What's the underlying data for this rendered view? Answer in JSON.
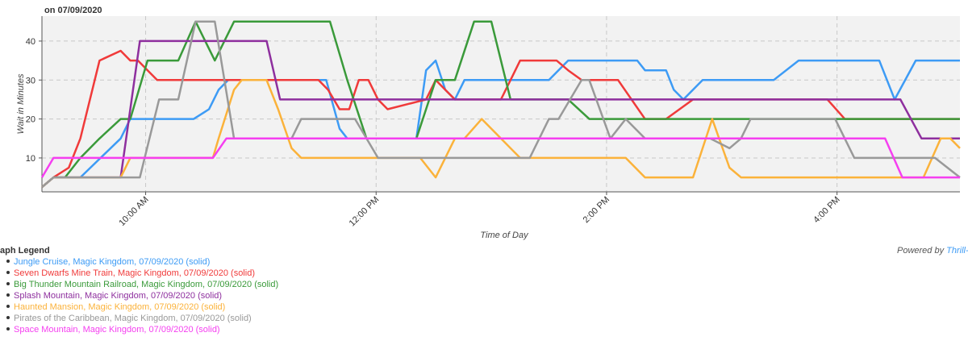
{
  "chart_data": {
    "type": "line",
    "title": "on 07/09/2020",
    "x_label": "Time of Day",
    "y_label": "Wait in Minutes",
    "xlim": [
      546,
      1024
    ],
    "ylim": [
      1.3,
      46.4
    ],
    "xticks": [
      {
        "value": 600,
        "label": "10:00 AM"
      },
      {
        "value": 720,
        "label": "12:00 PM"
      },
      {
        "value": 840,
        "label": "2:00 PM"
      },
      {
        "value": 960,
        "label": "4:00 PM"
      }
    ],
    "yticks": [
      10,
      20,
      30,
      40
    ],
    "grid": true,
    "series": [
      {
        "name": "Jungle Cruise, Magic Kingdom, 07/09/2020 (solid)",
        "color": "#3d9bf5",
        "x": [
          546,
          552,
          566,
          587,
          592,
          625,
          633,
          638,
          643,
          694,
          701,
          705,
          741,
          746,
          751,
          756,
          761,
          766,
          810,
          820,
          856,
          860,
          871,
          875,
          880,
          890,
          927,
          940,
          982,
          990,
          1001,
          1024
        ],
        "values": [
          2.5,
          5,
          5,
          15,
          20,
          20,
          22.5,
          27.5,
          30,
          30,
          17.5,
          15,
          15,
          32.5,
          35,
          27.5,
          25,
          30,
          30,
          35,
          35,
          32.5,
          32.5,
          27.5,
          25,
          30,
          30,
          35,
          35,
          25,
          35,
          35
        ]
      },
      {
        "name": "Seven Dwarfs Mine Train, Magic Kingdom, 07/09/2020 (solid)",
        "color": "#f03a3a",
        "x": [
          546,
          552,
          560,
          566,
          576,
          587,
          592,
          596,
          601,
          606,
          684,
          690,
          695,
          701,
          706,
          711,
          716,
          721,
          726,
          746,
          751,
          756,
          761,
          785,
          795,
          814,
          820,
          827,
          846,
          860,
          871,
          885,
          955,
          964,
          1024
        ],
        "values": [
          2.5,
          5,
          7.5,
          15,
          35,
          37.5,
          35,
          35,
          32.5,
          30,
          30,
          30,
          27.5,
          22.5,
          22.5,
          30,
          30,
          25,
          22.5,
          25,
          30,
          27.5,
          25,
          25,
          35,
          35,
          32.5,
          30,
          30,
          20,
          20,
          25,
          25,
          20,
          20
        ]
      },
      {
        "name": "Big Thunder Mountain Railroad, Magic Kingdom, 07/09/2020 (solid)",
        "color": "#3a9a3a",
        "x": [
          546,
          552,
          558,
          566,
          576,
          587,
          592,
          601,
          617,
          626,
          636,
          646,
          696,
          705,
          715,
          720,
          741,
          751,
          761,
          771,
          780,
          790,
          820,
          831,
          1024
        ],
        "values": [
          2.5,
          5,
          5,
          10,
          15,
          20,
          20,
          35,
          35,
          45,
          35,
          45,
          45,
          30,
          15,
          15,
          15,
          30,
          30,
          45,
          45,
          25,
          25,
          20,
          20
        ]
      },
      {
        "name": "Splash Mountain, Magic Kingdom, 07/09/2020 (solid)",
        "color": "#8e2f9e",
        "x": [
          546,
          552,
          587,
          597,
          663,
          670,
          993,
          1004,
          1024
        ],
        "values": [
          2.5,
          5,
          5,
          40,
          40,
          25,
          25,
          15,
          15
        ]
      },
      {
        "name": "Haunted Mansion, Magic Kingdom, 07/09/2020 (solid)",
        "color": "#fbb23a",
        "x": [
          546,
          552,
          587,
          592,
          635,
          638,
          646,
          650,
          663,
          669,
          676,
          681,
          743,
          751,
          761,
          766,
          775,
          785,
          795,
          850,
          860,
          885,
          895,
          904,
          910,
          1005,
          1014,
          1019,
          1024
        ],
        "values": [
          2.5,
          5,
          5,
          10,
          10,
          15,
          27.5,
          30,
          30,
          22.5,
          12.5,
          10,
          10,
          5,
          15,
          15,
          20,
          15,
          10,
          10,
          5,
          5,
          20,
          7.5,
          5,
          5,
          15,
          15,
          12.5
        ]
      },
      {
        "name": "Pirates of the Caribbean, Magic Kingdom, 07/09/2020 (solid)",
        "color": "#999999",
        "x": [
          546,
          552,
          597,
          607,
          617,
          626,
          636,
          646,
          676,
          681,
          709,
          721,
          800,
          810,
          815,
          827,
          831,
          842,
          850,
          860,
          894,
          904,
          910,
          915,
          959,
          969,
          1011,
          1024
        ],
        "values": [
          2.5,
          5,
          5,
          25,
          25,
          45,
          45,
          15,
          15,
          20,
          20,
          10,
          10,
          20,
          20,
          30,
          30,
          15,
          20,
          15,
          15,
          12.5,
          15,
          20,
          20,
          10,
          10,
          5
        ]
      },
      {
        "name": "Space Mountain, Magic Kingdom, 07/09/2020 (solid)",
        "color": "#f53ff0",
        "x": [
          546,
          552,
          635,
          642,
          985,
          994,
          1024
        ],
        "values": [
          5,
          10,
          10,
          15,
          15,
          5,
          5
        ]
      }
    ]
  },
  "legend_title": "aph Legend",
  "credit": {
    "prefix": "Powered by",
    "link": "Thrill-"
  }
}
